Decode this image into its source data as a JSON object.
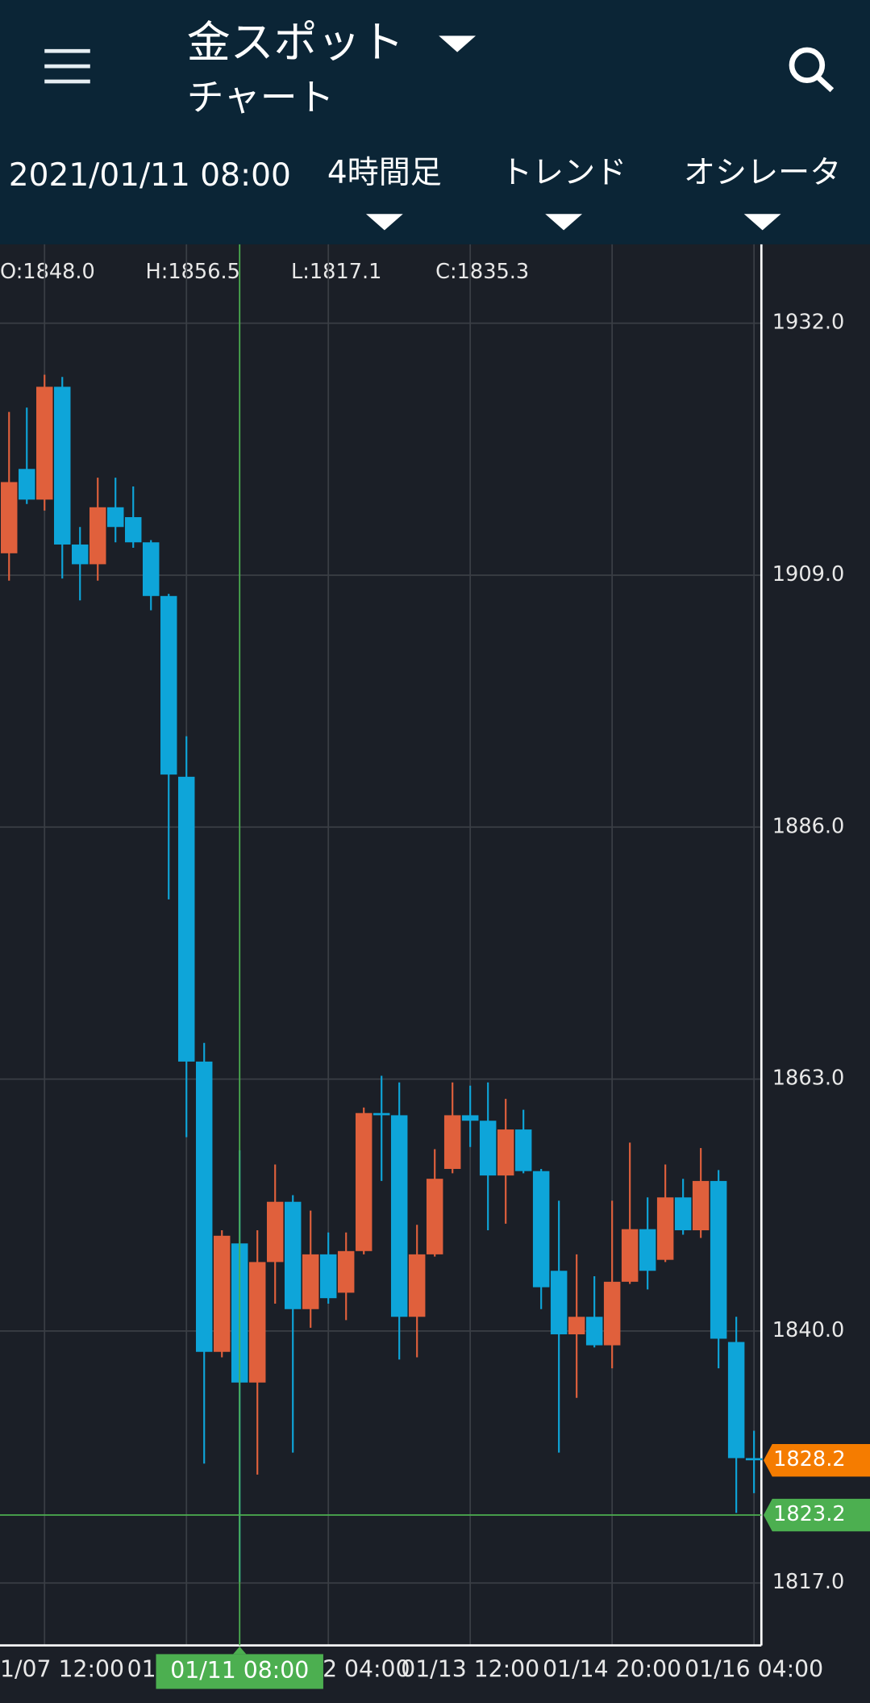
{
  "header": {
    "title": "金スポット",
    "subtitle": "チャート",
    "date": "2021/01/11 08:00",
    "menus": [
      "4時間足",
      "トレンド",
      "オシレータ"
    ]
  },
  "ohlc": [
    "O:1848.0",
    "H:1856.5",
    "L:1817.1",
    "C:1835.3"
  ],
  "chart_data": {
    "type": "candlestick",
    "categories": [
      null,
      null,
      "1/07 12:00",
      null,
      null,
      null,
      null,
      null,
      null,
      null,
      "01/",
      null,
      null,
      null,
      null,
      null,
      null,
      null,
      "2 04:00",
      null,
      null,
      null,
      null,
      null,
      null,
      null,
      "01/13 12:00",
      null,
      null,
      null,
      null,
      null,
      null,
      null,
      "01/14 20:00",
      null,
      null,
      null,
      null,
      null,
      null,
      null,
      "01/16 04:00"
    ],
    "open": [
      1911.0,
      1918.7,
      1915.9,
      1926.2,
      1911.8,
      1910.0,
      1915.2,
      1914.3,
      1912.0,
      1907.1,
      1890.6,
      1864.6,
      1838.1,
      1848.0,
      1835.3,
      1846.3,
      1851.8,
      1842.0,
      1847.0,
      1843.5,
      1847.3,
      1859.9,
      1859.7,
      1841.3,
      1847.0,
      1854.8,
      1859.7,
      1859.2,
      1854.2,
      1858.4,
      1854.6,
      1845.5,
      1839.7,
      1841.3,
      1838.7,
      1844.5,
      1849.3,
      1846.5,
      1852.2,
      1849.2,
      1853.7,
      1839.0,
      1828.4
    ],
    "high": [
      1923.9,
      1924.3,
      1927.3,
      1927.1,
      1913.4,
      1917.9,
      1917.9,
      1917.1,
      1912.2,
      1907.3,
      1894.3,
      1866.3,
      1849.2,
      1856.5,
      1849.2,
      1855.2,
      1852.4,
      1851.0,
      1849.0,
      1849.0,
      1860.4,
      1863.3,
      1862.7,
      1849.7,
      1856.6,
      1862.7,
      1862.4,
      1862.7,
      1861.2,
      1860.2,
      1854.8,
      1851.9,
      1847.0,
      1845.0,
      1851.9,
      1857.2,
      1852.2,
      1855.2,
      1853.9,
      1856.7,
      1854.7,
      1841.3,
      1830.9
    ],
    "low": [
      1908.5,
      1915.5,
      1914.9,
      1908.7,
      1906.7,
      1908.5,
      1912.0,
      1911.5,
      1905.8,
      1879.4,
      1857.7,
      1827.9,
      1837.6,
      1817.1,
      1826.9,
      1842.5,
      1828.9,
      1840.3,
      1842.5,
      1841.0,
      1847.0,
      1853.7,
      1837.4,
      1837.6,
      1846.8,
      1854.4,
      1856.8,
      1849.2,
      1849.8,
      1854.4,
      1842.0,
      1828.9,
      1833.9,
      1838.5,
      1836.6,
      1844.3,
      1843.8,
      1846.3,
      1848.8,
      1848.5,
      1836.6,
      1823.4,
      1825.2
    ],
    "close": [
      1917.5,
      1915.9,
      1926.2,
      1911.8,
      1910.0,
      1915.2,
      1913.4,
      1912.0,
      1907.1,
      1890.8,
      1864.6,
      1838.1,
      1848.7,
      1835.3,
      1846.3,
      1851.8,
      1842.0,
      1847.0,
      1843.0,
      1847.3,
      1859.9,
      1859.7,
      1841.3,
      1847.0,
      1853.9,
      1859.7,
      1859.2,
      1854.2,
      1858.4,
      1854.6,
      1844.0,
      1839.7,
      1841.3,
      1838.7,
      1844.5,
      1849.3,
      1845.5,
      1852.2,
      1849.2,
      1853.7,
      1839.3,
      1828.4,
      1828.2
    ],
    "up_color": "#e0603c",
    "down_color": "#0ea5d9",
    "ylim": [
      1811.3,
      1939.2
    ],
    "yticks": [
      {
        "value": 1932,
        "label": "1932.0"
      },
      {
        "value": 1909,
        "label": "1909.0"
      },
      {
        "value": 1886,
        "label": "1886.0"
      },
      {
        "value": 1863,
        "label": "1863.0"
      },
      {
        "value": 1840,
        "label": "1840.0"
      },
      {
        "value": 1817,
        "label": "1817.0"
      }
    ],
    "grid": true,
    "last_price": 1828.2,
    "last_price_color": "#f57c00",
    "crosshair": {
      "x_label": "01/11 08:00",
      "price": 1823.2,
      "color": "#4caf50"
    }
  }
}
